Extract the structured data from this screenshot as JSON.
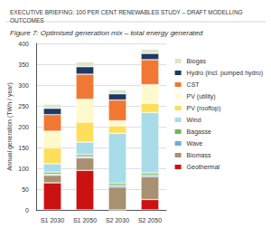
{
  "chart_data": {
    "type": "bar",
    "stacked": true,
    "header": "EXECUTIVE BRIEFING: 100 PER CENT RENEWABLES STUDY – DRAFT MODELLING\nOUTCOMES",
    "title": "Figure 7: Optimised generation mix – total energy generated",
    "ylabel": "Annual generation (TWh / year)",
    "categories": [
      "S1 2030",
      "S1 2050",
      "S2 2030",
      "S2 2050"
    ],
    "ylim": [
      0,
      400
    ],
    "yticks": [
      0,
      50,
      100,
      150,
      200,
      250,
      300,
      350,
      400
    ],
    "grid": true,
    "legend": "right",
    "series": [
      {
        "name": "Geothermal",
        "color": "#cc1111",
        "values": [
          65,
          95,
          0,
          25
        ]
      },
      {
        "name": "Biomass",
        "color": "#a89070",
        "values": [
          18,
          30,
          55,
          55
        ]
      },
      {
        "name": "Wave",
        "color": "#6baed6",
        "values": [
          3,
          3,
          4,
          4
        ]
      },
      {
        "name": "Bagasse",
        "color": "#74b74a",
        "values": [
          5,
          5,
          5,
          5
        ]
      },
      {
        "name": "Wind",
        "color": "#a8dce8",
        "values": [
          20,
          30,
          120,
          145
        ]
      },
      {
        "name": "PV (rooftop)",
        "color": "#ffde5a",
        "values": [
          38,
          48,
          18,
          22
        ]
      },
      {
        "name": "PV (utility)",
        "color": "#fffacc",
        "values": [
          40,
          55,
          12,
          45
        ]
      },
      {
        "name": "CST",
        "color": "#f07832",
        "values": [
          40,
          60,
          50,
          60
        ]
      },
      {
        "name": "Hydro (incl. pumped hydro)",
        "color": "#1f3864",
        "values": [
          15,
          18,
          15,
          15
        ]
      },
      {
        "name": "Biogas",
        "color": "#d9e8c8",
        "values": [
          10,
          12,
          10,
          10
        ]
      }
    ]
  }
}
